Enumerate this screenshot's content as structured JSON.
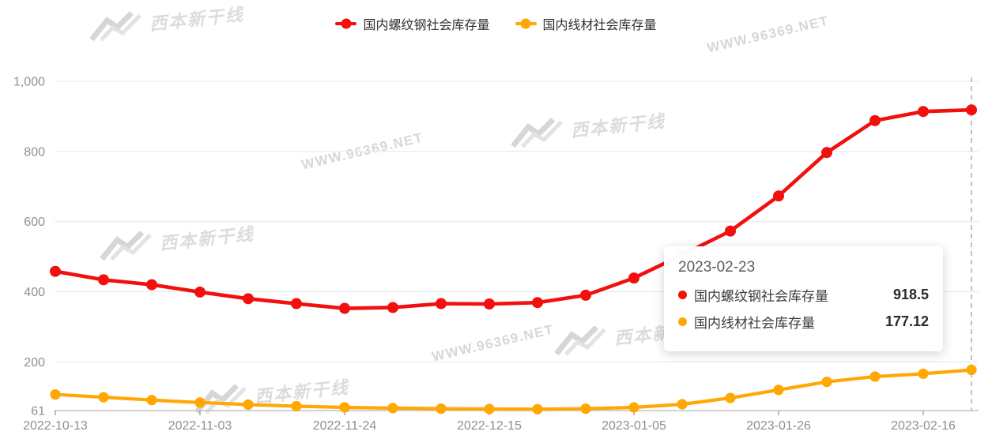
{
  "legend": {
    "items": [
      {
        "label": "国内螺纹钢社会库存量",
        "color": "#f2100e"
      },
      {
        "label": "国内线材社会库存量",
        "color": "#ffa702"
      }
    ]
  },
  "watermark": {
    "url_text": "WWW.96369.NET",
    "logo_text": "西本新干线"
  },
  "tooltip": {
    "date": "2023-02-23",
    "rows": [
      {
        "label": "国内螺纹钢社会库存量",
        "value": "918.5",
        "color": "#f2100e"
      },
      {
        "label": "国内线材社会库存量",
        "value": "177.12",
        "color": "#ffa702"
      }
    ]
  },
  "chart_data": {
    "type": "line",
    "x": [
      "2022-10-13",
      "2022-10-20",
      "2022-10-27",
      "2022-11-03",
      "2022-11-10",
      "2022-11-17",
      "2022-11-24",
      "2022-12-01",
      "2022-12-08",
      "2022-12-15",
      "2022-12-22",
      "2022-12-29",
      "2023-01-05",
      "2023-01-12",
      "2023-01-19",
      "2023-01-26",
      "2023-02-02",
      "2023-02-09",
      "2023-02-16",
      "2023-02-23"
    ],
    "series": [
      {
        "name": "国内螺纹钢社会库存量",
        "color": "#f2100e",
        "values": [
          458,
          434,
          420,
          399,
          380,
          366,
          352.5,
          355,
          366,
          365,
          369,
          390,
          439,
          505,
          573,
          673,
          797,
          888,
          914,
          918.5
        ]
      },
      {
        "name": "国内线材社会库存量",
        "color": "#ffa702",
        "values": [
          107,
          99,
          91,
          84,
          78,
          73.5,
          70,
          68,
          66.5,
          65.5,
          65,
          66.5,
          70,
          79,
          97,
          120,
          143,
          158,
          166,
          177.12
        ]
      }
    ],
    "title": "",
    "xlabel": "",
    "ylabel": "",
    "ylim": [
      61,
      1000
    ],
    "yticks": [
      61,
      200,
      400,
      600,
      800,
      1000
    ],
    "ytick_labels": [
      "61",
      "200",
      "400",
      "600",
      "800",
      "1,000"
    ],
    "xtick_indices": [
      0,
      3,
      6,
      9,
      12,
      15,
      18
    ],
    "grid": true,
    "legend_position": "top",
    "axis_pointer_index": 19,
    "colors": {
      "grid_line": "#e8edf4",
      "axis_line": "#c4c4c4",
      "tick": "#999999",
      "axis_label": "#8f8f8f",
      "pointer_line": "#aab4c4"
    }
  }
}
